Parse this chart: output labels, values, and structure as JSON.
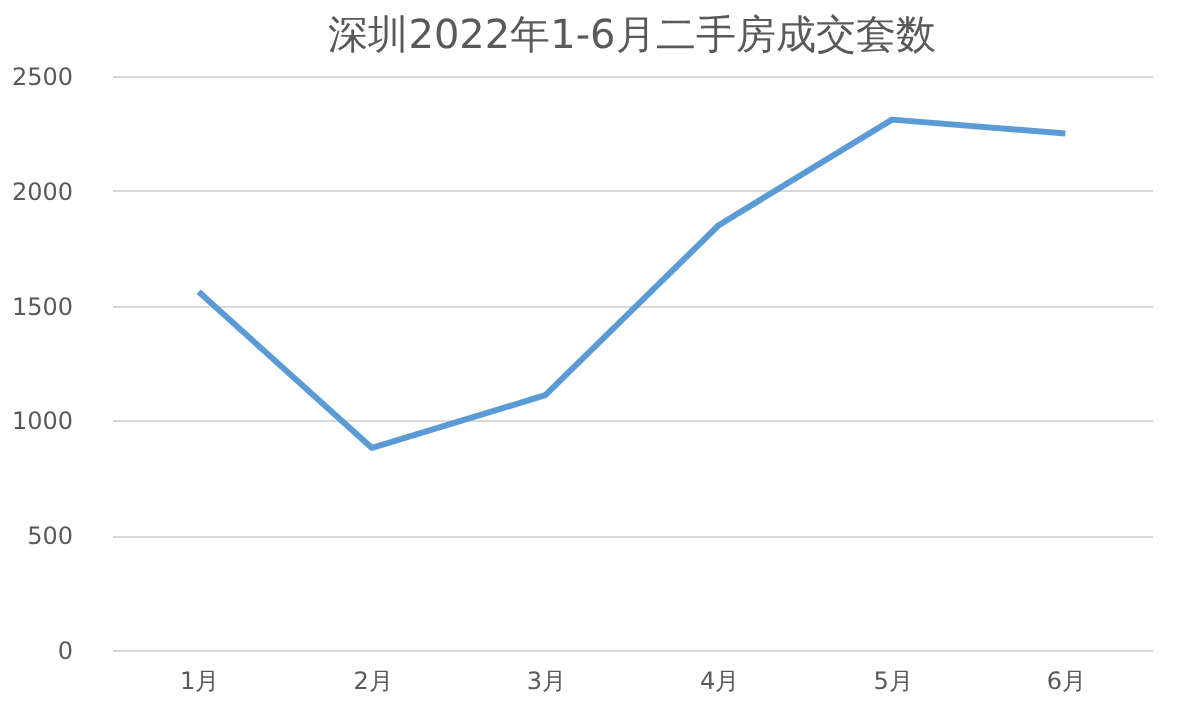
{
  "chart_data": {
    "type": "line",
    "title": "深圳2022年1-6月二手房成交套数",
    "categories": [
      "1月",
      "2月",
      "3月",
      "4月",
      "5月",
      "6月"
    ],
    "series": [
      {
        "color": "#5b9bd5",
        "values": [
          1560,
          880,
          1110,
          1850,
          2310,
          2250
        ]
      }
    ],
    "ylim": [
      0,
      2500
    ],
    "yticks": [
      0,
      500,
      1000,
      1500,
      2000,
      2500
    ],
    "grid": "y",
    "marker": "none",
    "line_style": "solid"
  }
}
